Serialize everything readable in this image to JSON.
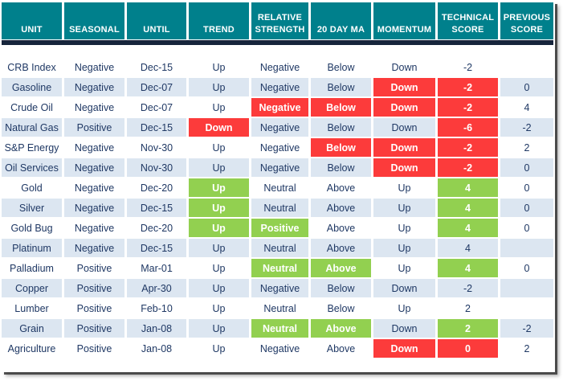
{
  "chart_data": {
    "type": "table",
    "title": "Commodity seasonal and technical score table",
    "columns": [
      "UNIT",
      "SEASONAL",
      "UNTIL",
      "TREND",
      "RELATIVE\nSTRENGTH",
      "20 DAY MA",
      "MOMENTUM",
      "TECHNICAL\nSCORE",
      "PREVIOUS\nSCORE"
    ],
    "rows": [
      {
        "cells": [
          "CRB Index",
          "Negative",
          "Dec-15",
          "Up",
          "Negative",
          "Below",
          "Down",
          "-2",
          ""
        ]
      },
      {
        "cells": [
          "Gasoline",
          "Negative",
          "Dec-07",
          "Up",
          "Negative",
          "Below",
          {
            "text": "Down",
            "fill": "red"
          },
          {
            "text": "-2",
            "fill": "red"
          },
          "0"
        ]
      },
      {
        "cells": [
          "Crude Oil",
          "Negative",
          "Dec-07",
          "Up",
          {
            "text": "Negative",
            "fill": "red"
          },
          {
            "text": "Below",
            "fill": "red"
          },
          {
            "text": "Down",
            "fill": "red"
          },
          {
            "text": "-2",
            "fill": "red"
          },
          "4"
        ]
      },
      {
        "cells": [
          "Natural Gas",
          "Positive",
          "Dec-15",
          {
            "text": "Down",
            "fill": "red"
          },
          "Negative",
          "Below",
          "Down",
          {
            "text": "-6",
            "fill": "red"
          },
          "-2"
        ]
      },
      {
        "cells": [
          "S&P Energy",
          "Negative",
          "Nov-30",
          "Up",
          "Negative",
          {
            "text": "Below",
            "fill": "red"
          },
          {
            "text": "Down",
            "fill": "red"
          },
          {
            "text": "-2",
            "fill": "red"
          },
          "2"
        ]
      },
      {
        "cells": [
          "Oil Services",
          "Negative",
          "Nov-30",
          "Up",
          "Negative",
          "Below",
          {
            "text": "Down",
            "fill": "red"
          },
          {
            "text": "-2",
            "fill": "red"
          },
          "0"
        ]
      },
      {
        "cells": [
          "Gold",
          "Negative",
          "Dec-20",
          {
            "text": "Up",
            "fill": "green"
          },
          "Neutral",
          "Above",
          "Up",
          {
            "text": "4",
            "fill": "green"
          },
          "0"
        ]
      },
      {
        "cells": [
          "Silver",
          "Negative",
          "Dec-15",
          {
            "text": "Up",
            "fill": "green"
          },
          "Neutral",
          "Above",
          "Up",
          {
            "text": "4",
            "fill": "green"
          },
          "0"
        ]
      },
      {
        "cells": [
          "Gold Bug",
          "Negative",
          "Dec-20",
          {
            "text": "Up",
            "fill": "green"
          },
          {
            "text": "Positive",
            "fill": "green"
          },
          "Above",
          "Up",
          {
            "text": "4",
            "fill": "green"
          },
          "0"
        ]
      },
      {
        "cells": [
          "Platinum",
          "Negative",
          "Dec-15",
          "Up",
          "Neutral",
          "Above",
          "Up",
          "4",
          ""
        ]
      },
      {
        "cells": [
          "Palladium",
          "Positive",
          "Mar-01",
          "Up",
          {
            "text": "Neutral",
            "fill": "green"
          },
          {
            "text": "Above",
            "fill": "green"
          },
          "Up",
          {
            "text": "4",
            "fill": "green"
          },
          "0"
        ]
      },
      {
        "cells": [
          "Copper",
          "Positive",
          "Apr-30",
          "Up",
          "Negative",
          "Below",
          "Down",
          "-2",
          ""
        ]
      },
      {
        "cells": [
          "Lumber",
          "Positive",
          "Feb-10",
          "Up",
          "Neutral",
          "Below",
          "Up",
          "2",
          ""
        ]
      },
      {
        "cells": [
          "Grain",
          "Positive",
          "Jan-08",
          "Up",
          {
            "text": "Neutral",
            "fill": "green"
          },
          {
            "text": "Above",
            "fill": "green"
          },
          "Down",
          {
            "text": "2",
            "fill": "green"
          },
          "-2"
        ]
      },
      {
        "cells": [
          "Agriculture",
          "Positive",
          "Jan-08",
          "Up",
          "Negative",
          "Above",
          {
            "text": "Down",
            "fill": "red"
          },
          {
            "text": "0",
            "fill": "red"
          },
          "2"
        ]
      }
    ],
    "legend_position": "none",
    "grid": false
  },
  "colors": {
    "header_bg": "#00808C",
    "header_text": "#FFFFFF",
    "header_underline": "#17253C",
    "alt_row_bg": "#DCE6F1",
    "negative_fill": "#FC3B3B",
    "positive_fill": "#92D050",
    "body_text": "#1F3864"
  }
}
